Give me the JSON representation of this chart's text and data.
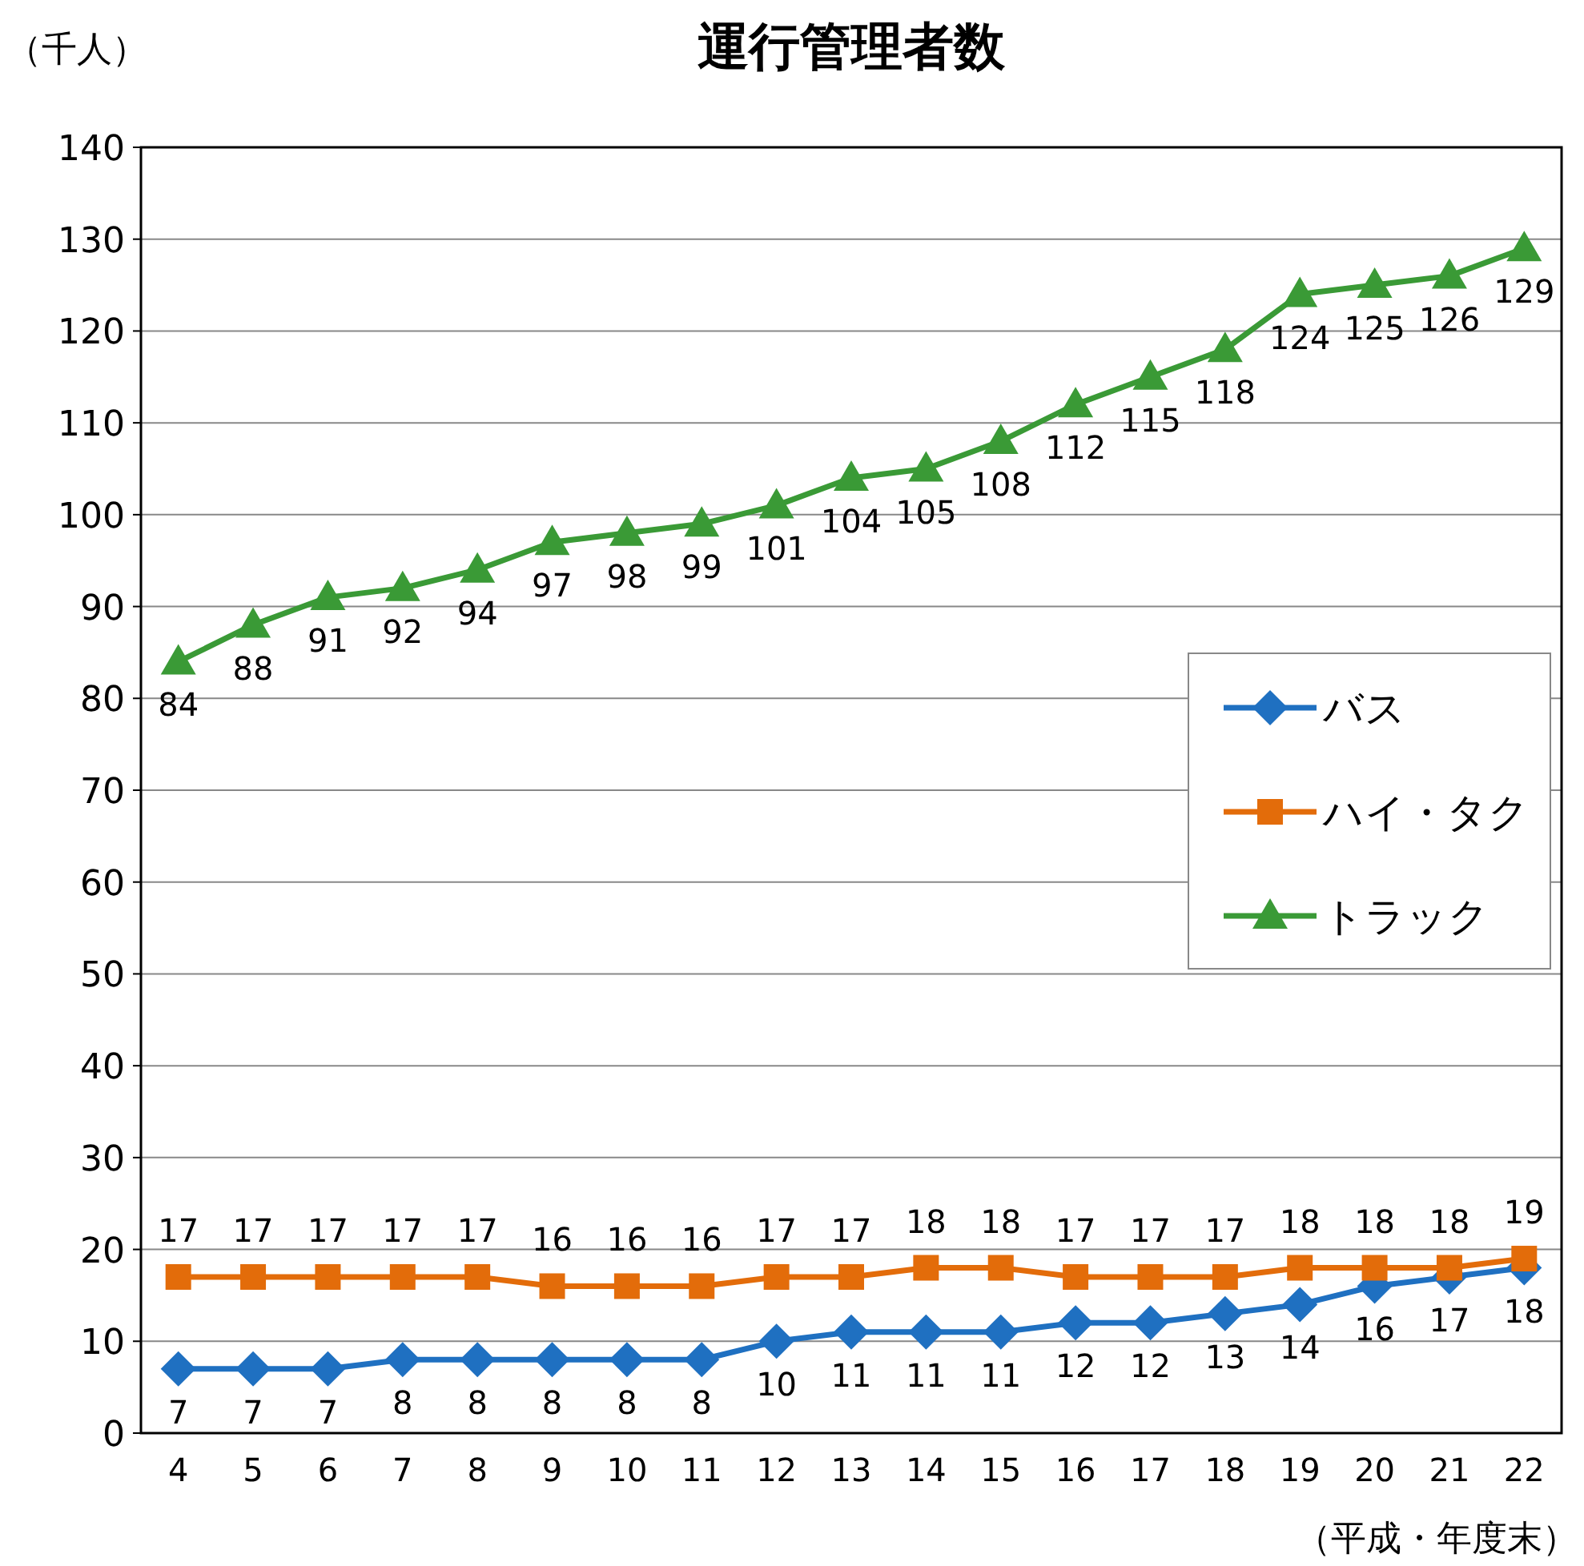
{
  "chart_data": {
    "type": "line",
    "title": "運行管理者数",
    "ylabel": "（千人）",
    "xlabel": "（平成・年度末）",
    "categories": [
      "4",
      "5",
      "6",
      "7",
      "8",
      "9",
      "10",
      "11",
      "12",
      "13",
      "14",
      "15",
      "16",
      "17",
      "18",
      "19",
      "20",
      "21",
      "22"
    ],
    "series": [
      {
        "name": "バス",
        "color": "#1f70c1",
        "marker": "diamond",
        "values": [
          7,
          7,
          7,
          8,
          8,
          8,
          8,
          8,
          10,
          11,
          11,
          11,
          12,
          12,
          13,
          14,
          16,
          17,
          18
        ]
      },
      {
        "name": "ハイ・タク",
        "color": "#e36c0a",
        "marker": "square",
        "values": [
          17,
          17,
          17,
          17,
          17,
          16,
          16,
          16,
          17,
          17,
          18,
          18,
          17,
          17,
          17,
          18,
          18,
          18,
          19
        ]
      },
      {
        "name": "トラック",
        "color": "#3a9a36",
        "marker": "triangle",
        "values": [
          84,
          88,
          91,
          92,
          94,
          97,
          98,
          99,
          101,
          104,
          105,
          108,
          112,
          115,
          118,
          124,
          125,
          126,
          129
        ]
      }
    ],
    "ylim": [
      0,
      140
    ],
    "yticks": [
      0,
      10,
      20,
      30,
      40,
      50,
      60,
      70,
      80,
      90,
      100,
      110,
      120,
      130,
      140
    ],
    "grid": "y",
    "legend": "right",
    "data_labels": true,
    "line_style": "solid"
  }
}
